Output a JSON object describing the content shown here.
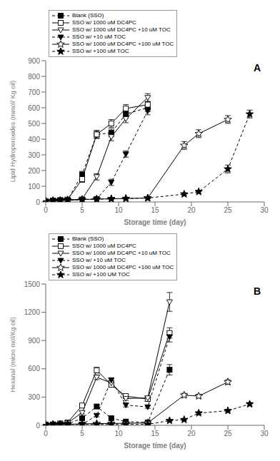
{
  "chart_data": [
    {
      "type": "line",
      "title": "A",
      "x_label": "Storage time (day)",
      "y_label": "Lipid Hydroperoxides (mmol/ Kg oil)",
      "xlim": [
        0,
        30
      ],
      "ylim": [
        0,
        900
      ],
      "xticks": [
        0,
        5,
        10,
        15,
        20,
        25,
        30
      ],
      "yticks": [
        0,
        100,
        200,
        300,
        400,
        500,
        600,
        700,
        800,
        900
      ],
      "grid": false,
      "legend": "upper left",
      "series": [
        {
          "name": "Blank (SSO)",
          "color": "black",
          "marker": "square",
          "line_style": "dashed",
          "x": [
            0,
            1,
            2,
            3,
            5,
            7,
            9,
            11,
            14
          ],
          "values": [
            5,
            8,
            10,
            12,
            175,
            430,
            440,
            560,
            600
          ],
          "yerr": [
            2,
            2,
            2,
            2,
            20,
            25,
            25,
            25,
            25
          ]
        },
        {
          "name": "SSO w/ 1000 uM DC4PC",
          "color": "black",
          "marker": "open-square",
          "line_style": "solid",
          "x": [
            0,
            1,
            2,
            3,
            5,
            7,
            9,
            11,
            14
          ],
          "values": [
            5,
            8,
            12,
            15,
            145,
            430,
            500,
            595,
            620
          ],
          "yerr": [
            2,
            2,
            2,
            2,
            20,
            25,
            25,
            25,
            20
          ]
        },
        {
          "name": "SSO w/ 1000 uM DC4PC +10 uM TOC",
          "color": "black",
          "marker": "open-triangle-down",
          "line_style": "solid",
          "x": [
            0,
            1,
            2,
            3,
            5,
            7,
            9,
            11,
            14
          ],
          "values": [
            5,
            8,
            10,
            12,
            18,
            160,
            415,
            530,
            665
          ],
          "yerr": [
            2,
            2,
            2,
            2,
            5,
            20,
            25,
            25,
            25
          ]
        },
        {
          "name": "SSO w/ +10 uM TOC",
          "color": "black",
          "marker": "triangle-down",
          "line_style": "dashed",
          "x": [
            0,
            1,
            2,
            3,
            5,
            7,
            9,
            11,
            14
          ],
          "values": [
            5,
            8,
            10,
            12,
            15,
            20,
            125,
            305,
            580
          ],
          "yerr": [
            2,
            2,
            2,
            2,
            5,
            5,
            20,
            20,
            25
          ]
        },
        {
          "name": "SSO w/ 1000 uM DC4PC +100 uM TOC",
          "color": "black",
          "marker": "open-star",
          "line_style": "solid",
          "x": [
            0,
            1,
            2,
            3,
            5,
            7,
            9,
            11,
            14,
            19,
            21,
            25
          ],
          "values": [
            5,
            8,
            10,
            12,
            15,
            18,
            20,
            22,
            25,
            360,
            435,
            525
          ],
          "yerr": [
            2,
            2,
            2,
            2,
            3,
            3,
            3,
            3,
            3,
            25,
            25,
            25
          ]
        },
        {
          "name": "SSO w/ +100 uM TOC",
          "color": "black",
          "marker": "star",
          "line_style": "dashed",
          "x": [
            0,
            1,
            2,
            3,
            5,
            7,
            9,
            11,
            14,
            19,
            21,
            25,
            28
          ],
          "values": [
            5,
            8,
            10,
            12,
            15,
            18,
            20,
            22,
            25,
            50,
            65,
            210,
            560
          ],
          "yerr": [
            2,
            2,
            2,
            2,
            3,
            3,
            3,
            3,
            3,
            8,
            10,
            25,
            25
          ]
        }
      ]
    },
    {
      "type": "line",
      "title": "B",
      "x_label": "Storage time (day)",
      "y_label": "Hexanal (micro mol/Kg oil)",
      "xlim": [
        0,
        30
      ],
      "ylim": [
        0,
        1500
      ],
      "xticks": [
        0,
        5,
        10,
        15,
        20,
        25,
        30
      ],
      "yticks": [
        0,
        300,
        600,
        900,
        1200,
        1500
      ],
      "grid": false,
      "legend": "upper left",
      "series": [
        {
          "name": "Blank (SSO)",
          "color": "black",
          "marker": "square",
          "line_style": "dashed",
          "x": [
            0,
            1,
            2,
            3,
            5,
            7,
            9,
            11,
            14,
            17
          ],
          "values": [
            5,
            8,
            10,
            15,
            75,
            200,
            75,
            40,
            30,
            590
          ],
          "yerr": [
            2,
            2,
            2,
            2,
            10,
            20,
            15,
            8,
            8,
            55
          ]
        },
        {
          "name": "SSO w/ 1000 uM DC4PC",
          "color": "black",
          "marker": "open-square",
          "line_style": "solid",
          "x": [
            0,
            1,
            2,
            3,
            5,
            7,
            9,
            11,
            14,
            17
          ],
          "values": [
            5,
            10,
            20,
            30,
            210,
            585,
            430,
            310,
            280,
            980
          ],
          "yerr": [
            2,
            2,
            3,
            5,
            20,
            30,
            25,
            20,
            20,
            55
          ]
        },
        {
          "name": "SSO w/ 1000 uM DC4PC +10 uM TOC",
          "color": "black",
          "marker": "open-triangle-down",
          "line_style": "solid",
          "x": [
            0,
            1,
            2,
            3,
            5,
            7,
            9,
            11,
            14,
            17
          ],
          "values": [
            5,
            10,
            15,
            25,
            135,
            510,
            450,
            285,
            290,
            1310
          ],
          "yerr": [
            2,
            2,
            3,
            5,
            15,
            25,
            25,
            20,
            20,
            100
          ]
        },
        {
          "name": "SSO w/ +10 uM TOC",
          "color": "black",
          "marker": "triangle-down",
          "line_style": "dashed",
          "x": [
            0,
            1,
            2,
            3,
            5,
            7,
            9,
            11,
            14,
            17
          ],
          "values": [
            5,
            8,
            10,
            10,
            10,
            105,
            480,
            215,
            195,
            940
          ],
          "yerr": [
            2,
            2,
            2,
            2,
            5,
            15,
            25,
            20,
            15,
            55
          ]
        },
        {
          "name": "SSO w/ 1000 uM DC4PC +100 uM TOC",
          "color": "black",
          "marker": "open-star",
          "line_style": "solid",
          "x": [
            0,
            1,
            2,
            3,
            5,
            7,
            9,
            11,
            14,
            19,
            21,
            25
          ],
          "values": [
            5,
            8,
            10,
            12,
            15,
            18,
            20,
            22,
            25,
            320,
            310,
            460
          ],
          "yerr": [
            2,
            2,
            2,
            2,
            3,
            3,
            3,
            3,
            3,
            20,
            20,
            25
          ]
        },
        {
          "name": "SSO w/ +100 UM TOC",
          "color": "black",
          "marker": "star",
          "line_style": "dashed",
          "x": [
            0,
            1,
            2,
            3,
            5,
            7,
            9,
            11,
            14,
            17,
            19,
            21,
            25,
            28
          ],
          "values": [
            5,
            8,
            10,
            10,
            10,
            10,
            10,
            10,
            10,
            50,
            60,
            130,
            155,
            225
          ],
          "yerr": [
            2,
            2,
            2,
            2,
            2,
            2,
            2,
            2,
            2,
            8,
            8,
            12,
            12,
            18
          ]
        }
      ]
    }
  ]
}
